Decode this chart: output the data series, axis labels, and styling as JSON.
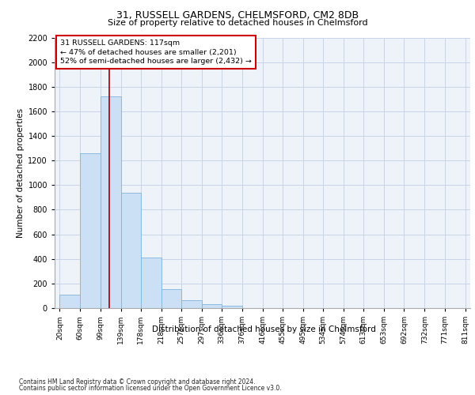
{
  "title1": "31, RUSSELL GARDENS, CHELMSFORD, CM2 8DB",
  "title2": "Size of property relative to detached houses in Chelmsford",
  "xlabel": "Distribution of detached houses by size in Chelmsford",
  "ylabel": "Number of detached properties",
  "footer1": "Contains HM Land Registry data © Crown copyright and database right 2024.",
  "footer2": "Contains public sector information licensed under the Open Government Licence v3.0.",
  "annotation_line1": "31 RUSSELL GARDENS: 117sqm",
  "annotation_line2": "← 47% of detached houses are smaller (2,201)",
  "annotation_line3": "52% of semi-detached houses are larger (2,432) →",
  "bar_edges": [
    20,
    60,
    99,
    139,
    178,
    218,
    257,
    297,
    336,
    376,
    416,
    455,
    495,
    534,
    574,
    613,
    653,
    692,
    732,
    771,
    811
  ],
  "bar_heights": [
    110,
    1260,
    1720,
    940,
    410,
    155,
    65,
    35,
    22,
    0,
    0,
    0,
    0,
    0,
    0,
    0,
    0,
    0,
    0,
    0
  ],
  "bar_color": "#cce0f5",
  "bar_edge_color": "#7fb3dc",
  "vline_x": 117,
  "vline_color": "#990000",
  "annotation_box_edge_color": "#cc0000",
  "ylim": [
    0,
    2200
  ],
  "yticks": [
    0,
    200,
    400,
    600,
    800,
    1000,
    1200,
    1400,
    1600,
    1800,
    2000,
    2200
  ],
  "grid_color": "#c8d4e8",
  "background_color": "#eef2f9",
  "fig_background": "#ffffff",
  "title1_fontsize": 9,
  "title2_fontsize": 8,
  "ylabel_fontsize": 7.5,
  "tick_fontsize": 6.5,
  "footer_fontsize": 5.5
}
